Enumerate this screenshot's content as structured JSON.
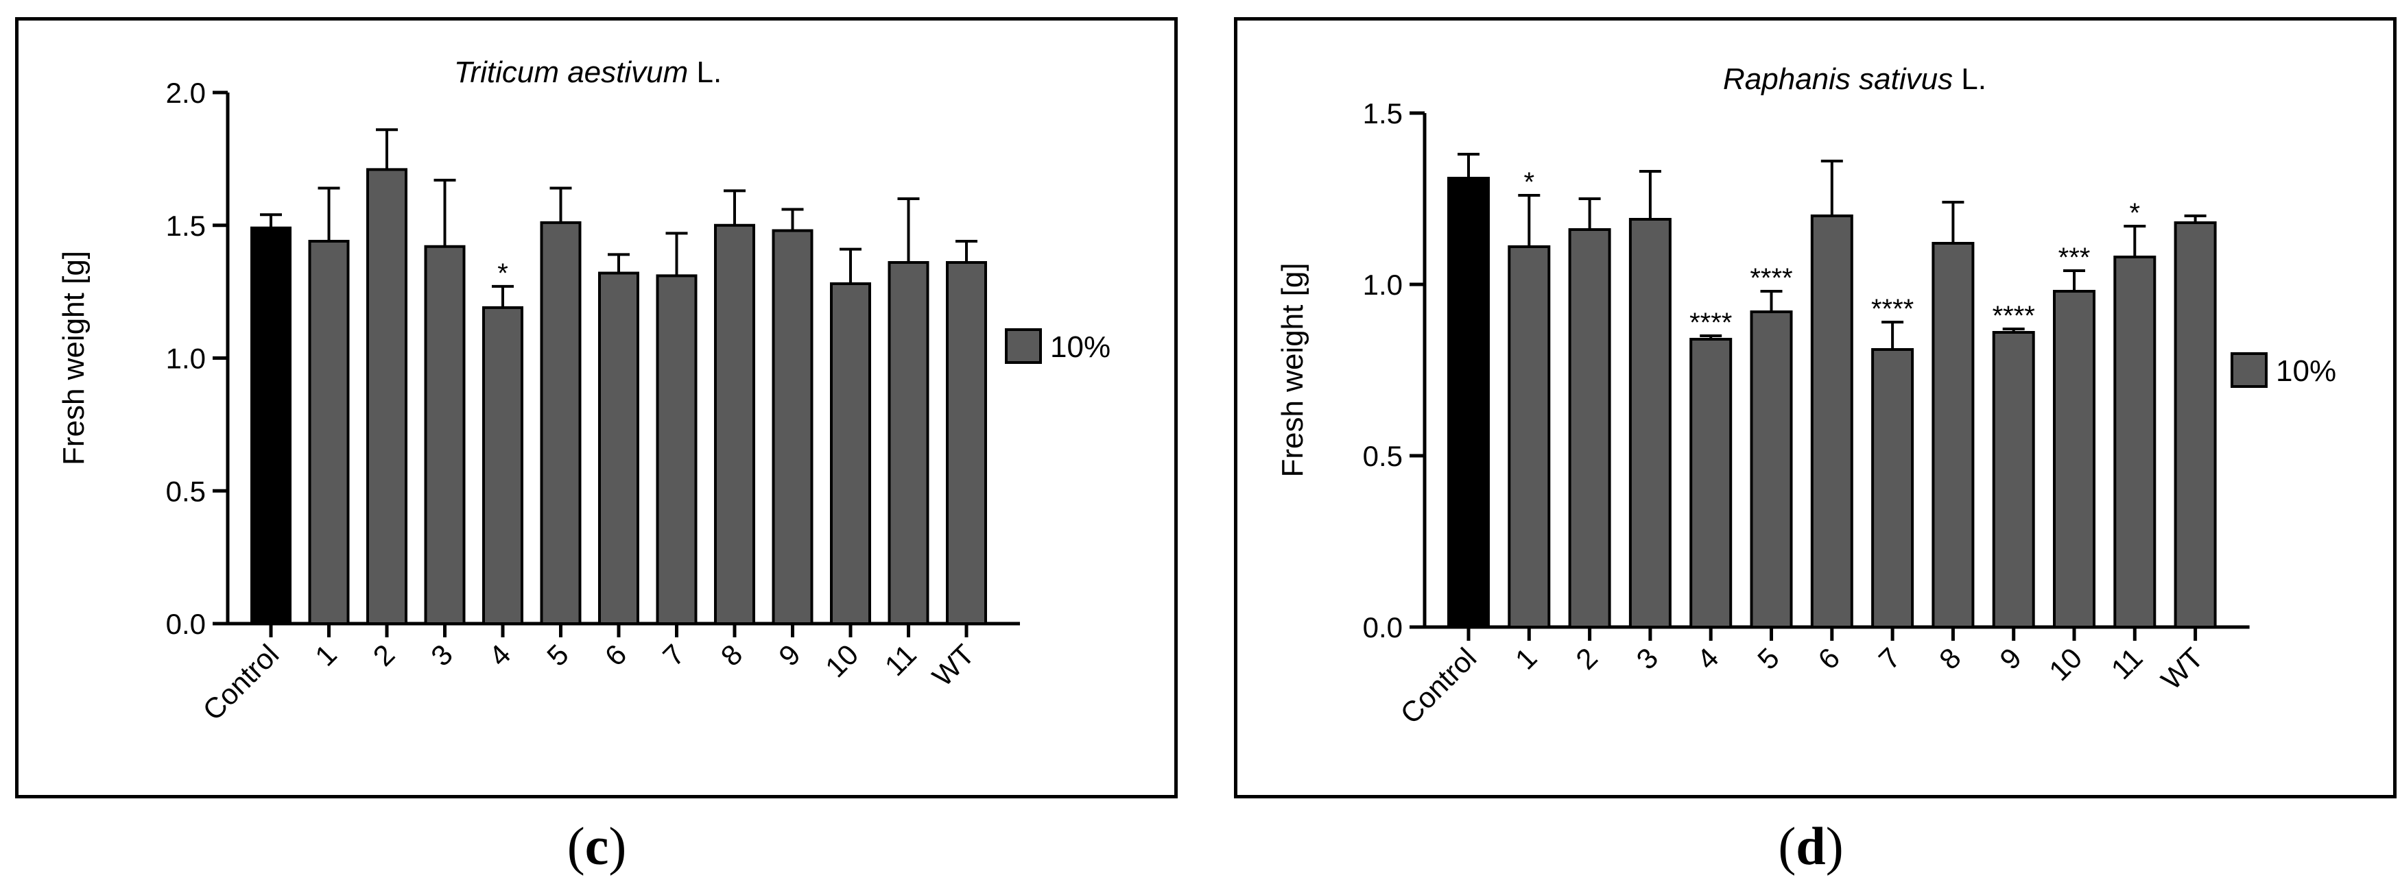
{
  "chart_data": [
    {
      "type": "bar",
      "panel_label": "c",
      "title_species": "Triticum aestivum",
      "title_suffix": " L.",
      "ylabel": "Fresh weight [g]",
      "xlabel": "",
      "ylim": [
        0,
        2.0
      ],
      "yticks": [
        "0.0",
        "0.5",
        "1.0",
        "1.5",
        "2.0"
      ],
      "categories": [
        "Control",
        "1",
        "2",
        "3",
        "4",
        "5",
        "6",
        "7",
        "8",
        "9",
        "10",
        "11",
        "WT"
      ],
      "series": [
        {
          "name": "10%",
          "values": [
            1.49,
            1.44,
            1.71,
            1.42,
            1.19,
            1.51,
            1.32,
            1.31,
            1.5,
            1.48,
            1.28,
            1.36,
            1.36
          ],
          "errors": [
            0.05,
            0.2,
            0.15,
            0.25,
            0.08,
            0.13,
            0.07,
            0.16,
            0.13,
            0.08,
            0.13,
            0.24,
            0.08
          ],
          "significance": [
            "",
            "",
            "",
            "",
            "*",
            "",
            "",
            "",
            "",
            "",
            "",
            "",
            ""
          ]
        }
      ],
      "control_color": "#000000",
      "bar_color": "#5a5a5a",
      "legend_label": "10%",
      "legend_position": "right"
    },
    {
      "type": "bar",
      "panel_label": "d",
      "title_species": "Raphanis sativus",
      "title_suffix": " L.",
      "ylabel": "Fresh weight [g]",
      "xlabel": "",
      "ylim": [
        0,
        1.5
      ],
      "yticks": [
        "0.0",
        "0.5",
        "1.0",
        "1.5"
      ],
      "categories": [
        "Control",
        "1",
        "2",
        "3",
        "4",
        "5",
        "6",
        "7",
        "8",
        "9",
        "10",
        "11",
        "WT"
      ],
      "series": [
        {
          "name": "10%",
          "values": [
            1.31,
            1.11,
            1.16,
            1.19,
            0.84,
            0.92,
            1.2,
            0.81,
            1.12,
            0.86,
            0.98,
            1.08,
            1.18
          ],
          "errors": [
            0.07,
            0.15,
            0.09,
            0.14,
            0.01,
            0.06,
            0.16,
            0.08,
            0.12,
            0.01,
            0.06,
            0.09,
            0.02
          ],
          "significance": [
            "",
            "*",
            "",
            "",
            "****",
            "****",
            "",
            "****",
            "",
            "****",
            "***",
            "*",
            ""
          ]
        }
      ],
      "control_color": "#000000",
      "bar_color": "#5a5a5a",
      "legend_label": "10%",
      "legend_position": "right"
    }
  ]
}
